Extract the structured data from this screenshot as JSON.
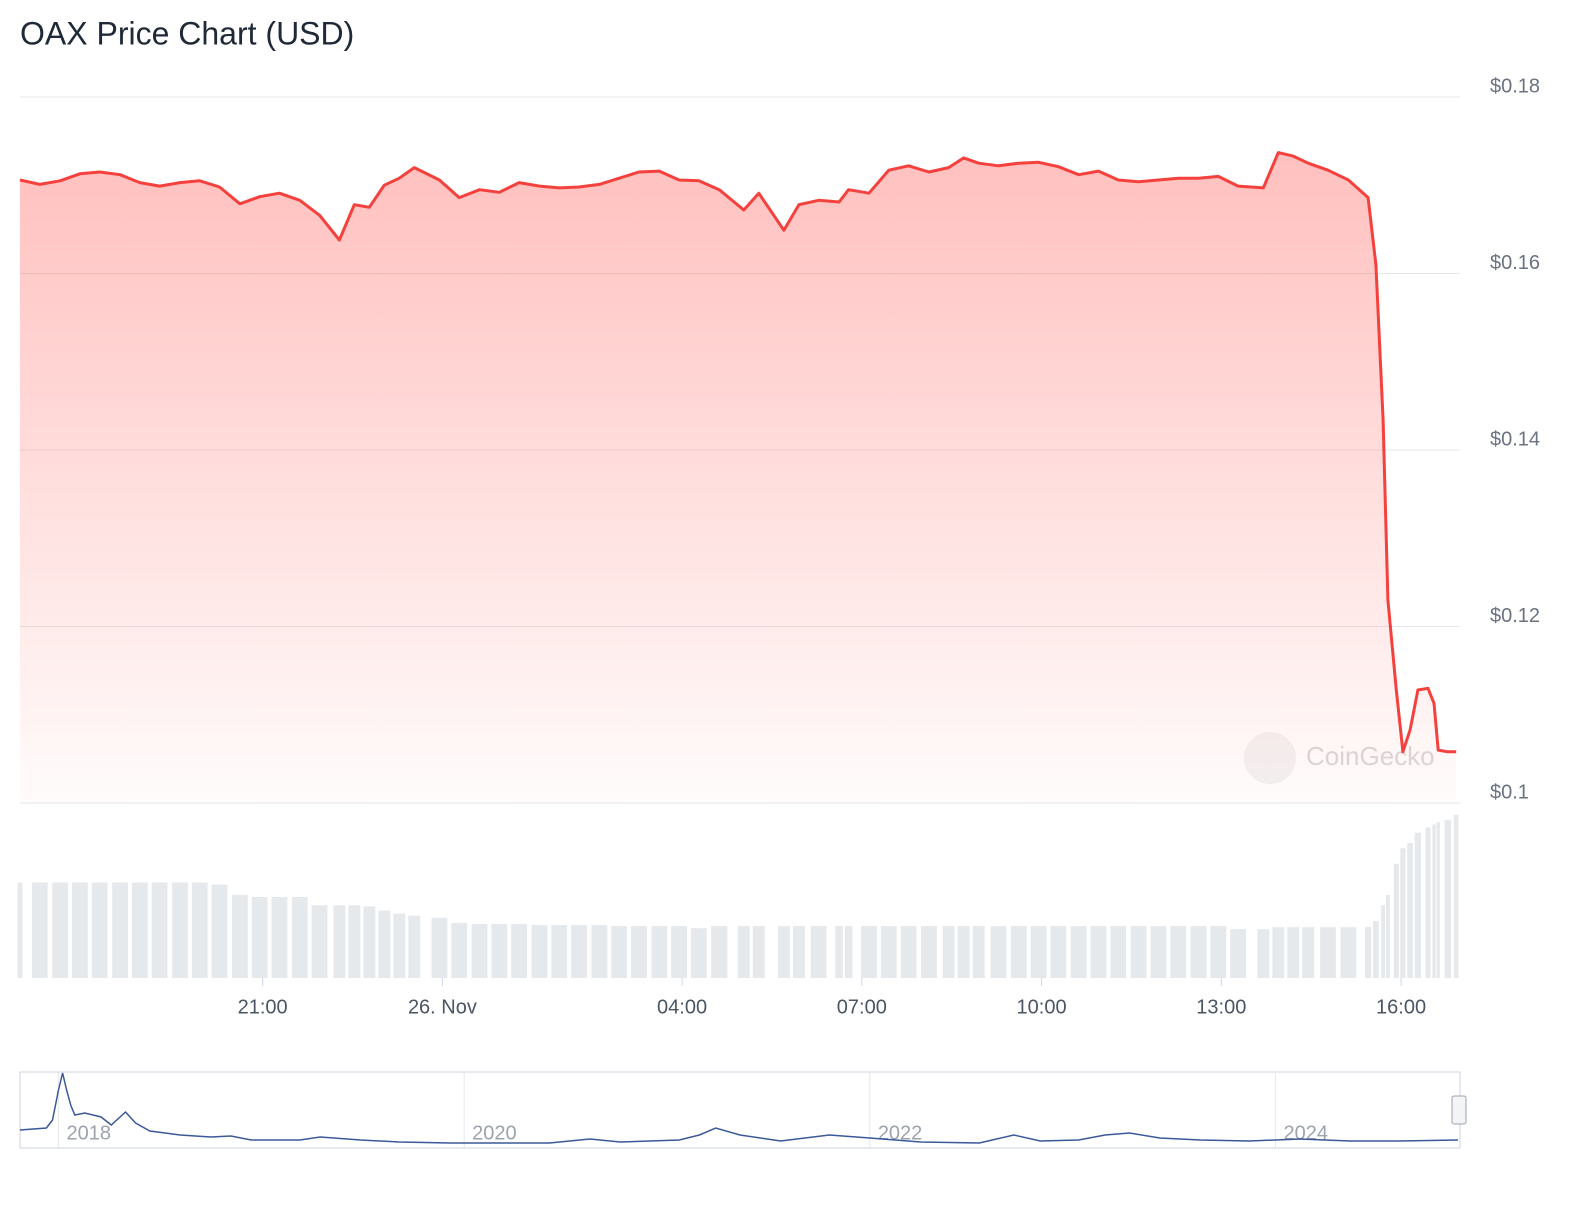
{
  "chart_data": {
    "type": "line",
    "title": "OAX Price Chart (USD)",
    "watermark": "CoinGecko",
    "color": "#f5413d",
    "grid": true,
    "xlim": [
      16.95,
      40.95
    ],
    "xticks": [
      {
        "value": 21,
        "label": "21:00"
      },
      {
        "value": 24,
        "label": "26. Nov"
      },
      {
        "value": 28,
        "label": "04:00"
      },
      {
        "value": 31,
        "label": "07:00"
      },
      {
        "value": 34,
        "label": "10:00"
      },
      {
        "value": 37,
        "label": "13:00"
      },
      {
        "value": 40,
        "label": "16:00"
      }
    ],
    "ylim": [
      0.1,
      0.18
    ],
    "yticks": [
      {
        "value": 0.18,
        "label": "$0.18"
      },
      {
        "value": 0.16,
        "label": "$0.16"
      },
      {
        "value": 0.14,
        "label": "$0.14"
      },
      {
        "value": 0.12,
        "label": "$0.12"
      },
      {
        "value": 0.1,
        "label": "$0.1"
      }
    ],
    "x": [
      16.95,
      17.28,
      17.62,
      17.95,
      18.28,
      18.62,
      18.95,
      19.28,
      19.62,
      19.95,
      20.28,
      20.62,
      20.95,
      21.28,
      21.62,
      21.95,
      22.28,
      22.53,
      22.78,
      23.03,
      23.28,
      23.53,
      23.95,
      24.28,
      24.62,
      24.95,
      25.28,
      25.62,
      25.95,
      26.28,
      26.62,
      26.95,
      27.28,
      27.62,
      27.95,
      28.28,
      28.62,
      29.03,
      29.28,
      29.7,
      29.95,
      30.28,
      30.62,
      30.78,
      31.12,
      31.45,
      31.78,
      32.12,
      32.45,
      32.7,
      32.95,
      33.28,
      33.62,
      33.95,
      34.28,
      34.62,
      34.95,
      35.28,
      35.62,
      35.95,
      36.28,
      36.62,
      36.95,
      37.28,
      37.7,
      37.95,
      38.2,
      38.45,
      38.78,
      39.12,
      39.45,
      39.58,
      39.7,
      39.78,
      39.92,
      40.03,
      40.15,
      40.28,
      40.45,
      40.55,
      40.62,
      40.78,
      40.92
    ],
    "series": [
      {
        "name": "Price",
        "color": "#f5413d",
        "values": [
          0.1706,
          0.1701,
          0.1705,
          0.1713,
          0.1715,
          0.1712,
          0.1703,
          0.1699,
          0.1703,
          0.1705,
          0.1698,
          0.1679,
          0.1687,
          0.1691,
          0.1683,
          0.1666,
          0.1638,
          0.1678,
          0.1675,
          0.17,
          0.1708,
          0.172,
          0.1706,
          0.1686,
          0.1695,
          0.1692,
          0.1703,
          0.1699,
          0.1697,
          0.1698,
          0.1701,
          0.1708,
          0.1715,
          0.1716,
          0.1706,
          0.1705,
          0.1695,
          0.1672,
          0.1691,
          0.1649,
          0.1678,
          0.1683,
          0.1681,
          0.1695,
          0.1691,
          0.1717,
          0.1722,
          0.1715,
          0.172,
          0.1731,
          0.1725,
          0.1722,
          0.1725,
          0.1726,
          0.1721,
          0.1712,
          0.1716,
          0.1706,
          0.1704,
          0.1706,
          0.1708,
          0.1708,
          0.171,
          0.1699,
          0.1697,
          0.1737,
          0.1733,
          0.1725,
          0.1717,
          0.1706,
          0.1686,
          0.161,
          0.1434,
          0.123,
          0.1128,
          0.1058,
          0.1083,
          0.1128,
          0.113,
          0.1113,
          0.106,
          0.1058,
          0.1058
        ]
      },
      {
        "name": "Volume",
        "color": "#e6e9ec",
        "values": [
          92,
          92,
          92,
          92,
          92,
          92,
          92,
          92,
          92,
          92,
          90,
          80,
          78,
          78,
          78,
          70,
          70,
          70,
          69,
          65,
          62,
          60,
          58,
          53,
          52,
          52,
          52,
          51,
          51,
          51,
          51,
          50,
          50,
          50,
          50,
          48,
          50,
          50,
          50,
          50,
          50,
          50,
          50,
          50,
          50,
          50,
          50,
          50,
          50,
          50,
          50,
          50,
          50,
          50,
          50,
          50,
          50,
          50,
          50,
          50,
          50,
          50,
          50,
          47,
          47,
          49,
          49,
          49,
          49,
          49,
          49,
          55,
          70,
          80,
          110,
          125,
          130,
          140,
          145,
          148,
          150,
          152,
          157
        ]
      }
    ],
    "navigator": {
      "color": "#3b5998",
      "xlim": [
        2017.81,
        2024.9
      ],
      "xticks": [
        2018,
        2020,
        2022,
        2024
      ],
      "x": [
        2017.81,
        2017.94,
        2017.97,
        2018,
        2018.02,
        2018.04,
        2018.06,
        2018.08,
        2018.13,
        2018.21,
        2018.26,
        2018.33,
        2018.38,
        2018.45,
        2018.6,
        2018.75,
        2018.85,
        2018.95,
        2019.19,
        2019.29,
        2019.49,
        2019.68,
        2019.93,
        2020.18,
        2020.42,
        2020.62,
        2020.77,
        2021.06,
        2021.16,
        2021.24,
        2021.36,
        2021.56,
        2021.8,
        2022,
        2022.25,
        2022.54,
        2022.71,
        2022.84,
        2023.03,
        2023.16,
        2023.28,
        2023.43,
        2023.63,
        2023.87,
        2024,
        2024.12,
        2024.37,
        2024.61,
        2024.9
      ],
      "values": [
        15,
        17,
        25,
        55,
        72,
        55,
        40,
        30,
        32,
        28,
        20,
        33,
        22,
        14,
        10,
        8,
        9,
        5,
        5,
        8,
        5,
        3,
        2,
        2,
        2,
        6,
        3,
        5,
        10,
        17,
        10,
        4,
        10,
        7,
        3,
        2,
        10,
        4,
        5,
        10,
        12,
        7,
        5,
        4,
        5,
        6,
        4,
        4,
        5
      ]
    }
  }
}
